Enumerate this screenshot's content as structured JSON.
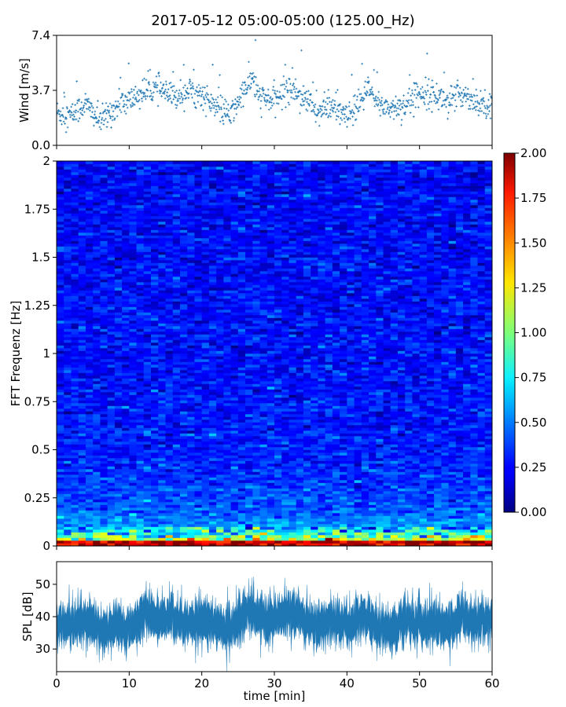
{
  "title": "2017-05-12 05:00-05:00 (125.00_Hz)",
  "chart_data": [
    {
      "type": "scatter",
      "ylabel": "Wind [m/s]",
      "xlim": [
        0,
        60
      ],
      "ylim": [
        0,
        7.4
      ],
      "yticks": [
        "0.0",
        "3.7",
        "7.4"
      ],
      "color": "#1f77b4",
      "marker": "+",
      "profile": [
        [
          0,
          2.2
        ],
        [
          2,
          2.0
        ],
        [
          4,
          2.8
        ],
        [
          6,
          1.6
        ],
        [
          8,
          2.5
        ],
        [
          10,
          3.0
        ],
        [
          12,
          3.6
        ],
        [
          14,
          3.8
        ],
        [
          16,
          3.2
        ],
        [
          18,
          3.7
        ],
        [
          20,
          3.4
        ],
        [
          22,
          2.5
        ],
        [
          24,
          2.0
        ],
        [
          26,
          3.8
        ],
        [
          27,
          4.5
        ],
        [
          28,
          3.2
        ],
        [
          30,
          3.0
        ],
        [
          32,
          3.9
        ],
        [
          34,
          3.3
        ],
        [
          36,
          2.2
        ],
        [
          38,
          2.6
        ],
        [
          40,
          1.8
        ],
        [
          42,
          3.0
        ],
        [
          43,
          3.8
        ],
        [
          44,
          2.9
        ],
        [
          46,
          2.5
        ],
        [
          48,
          2.7
        ],
        [
          50,
          3.6
        ],
        [
          52,
          3.4
        ],
        [
          54,
          3.0
        ],
        [
          56,
          3.5
        ],
        [
          58,
          2.9
        ],
        [
          60,
          2.8
        ]
      ]
    },
    {
      "type": "heatmap",
      "ylabel": "FFT Frequenz [Hz]",
      "xlim": [
        0,
        60
      ],
      "ylim": [
        0,
        2
      ],
      "yticks": [
        "0",
        "0.25",
        "0.5",
        "0.75",
        "1",
        "1.25",
        "1.5",
        "1.75",
        "2"
      ],
      "colormap": "jet",
      "colorbar": {
        "range": [
          0,
          2
        ],
        "ticks": [
          "0.00",
          "0.25",
          "0.50",
          "0.75",
          "1.00",
          "1.25",
          "1.50",
          "1.75",
          "2.00"
        ]
      },
      "intensity_by_frequency": [
        [
          0.0,
          2.0
        ],
        [
          0.02,
          1.4
        ],
        [
          0.05,
          0.9
        ],
        [
          0.1,
          0.55
        ],
        [
          0.2,
          0.42
        ],
        [
          0.3,
          0.36
        ],
        [
          0.5,
          0.3
        ],
        [
          1.0,
          0.27
        ],
        [
          2.0,
          0.25
        ]
      ]
    },
    {
      "type": "area",
      "ylabel": "SPL [dB]",
      "xlabel": "time [min]",
      "xlim": [
        0,
        60
      ],
      "ylim": [
        23,
        57
      ],
      "xticks": [
        "0",
        "10",
        "20",
        "30",
        "40",
        "50",
        "60"
      ],
      "yticks": [
        "30",
        "40",
        "50"
      ],
      "color": "#1f77b4",
      "profile": [
        [
          0,
          37
        ],
        [
          2,
          38
        ],
        [
          4,
          39
        ],
        [
          6,
          36
        ],
        [
          8,
          37
        ],
        [
          10,
          36
        ],
        [
          12,
          41
        ],
        [
          14,
          39
        ],
        [
          16,
          40
        ],
        [
          18,
          38
        ],
        [
          20,
          39
        ],
        [
          22,
          37
        ],
        [
          24,
          36
        ],
        [
          26,
          41
        ],
        [
          28,
          40
        ],
        [
          30,
          39
        ],
        [
          32,
          42
        ],
        [
          34,
          39
        ],
        [
          36,
          37
        ],
        [
          38,
          39
        ],
        [
          40,
          37
        ],
        [
          42,
          40
        ],
        [
          44,
          37
        ],
        [
          46,
          36
        ],
        [
          48,
          39
        ],
        [
          50,
          38
        ],
        [
          52,
          38
        ],
        [
          54,
          37
        ],
        [
          56,
          40
        ],
        [
          58,
          38
        ],
        [
          60,
          39
        ]
      ]
    }
  ]
}
